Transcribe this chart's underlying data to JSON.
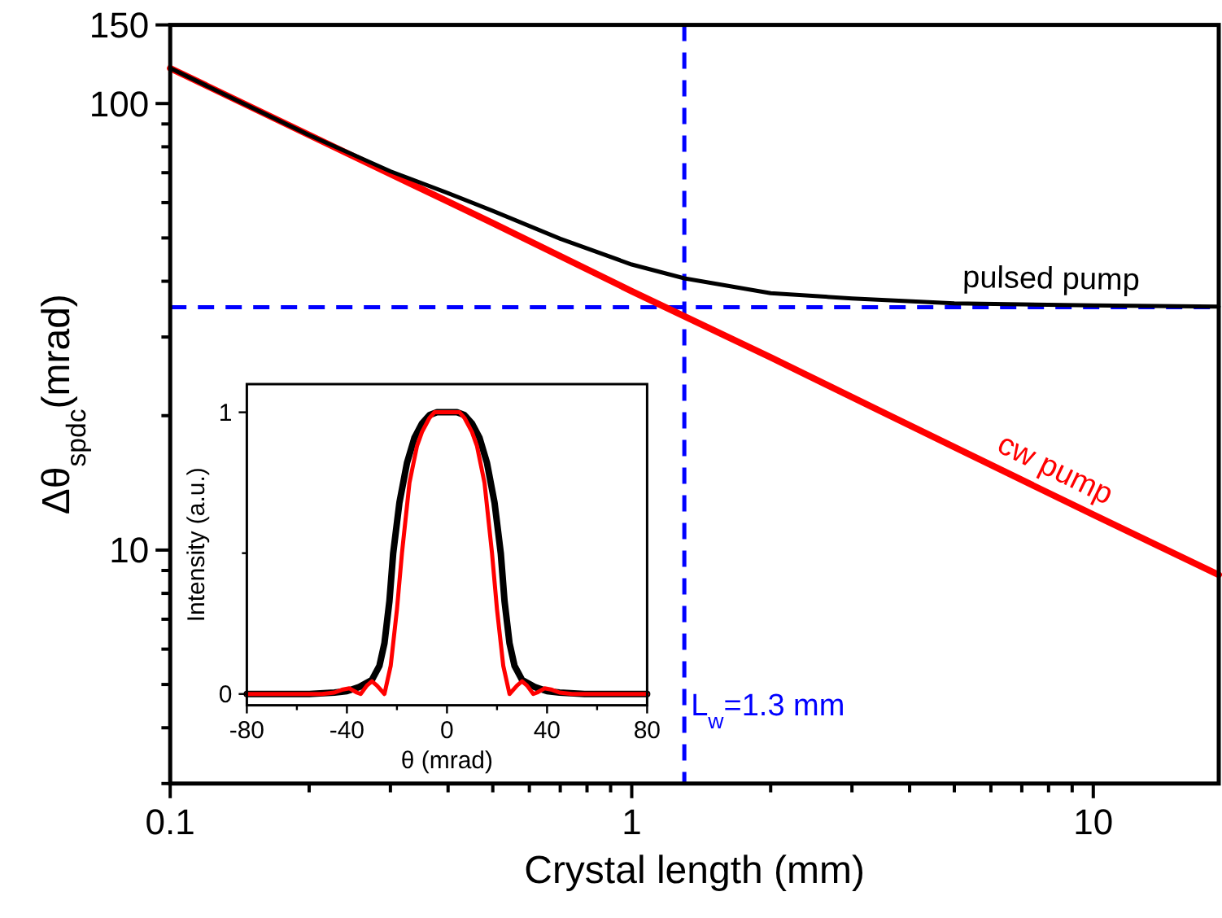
{
  "chart_data": [
    {
      "type": "line",
      "xlabel": "Crystal length (mm)",
      "ylabel": "Δθ$_{spdc}$(mrad)",
      "log": "xy",
      "xlim": [
        0.1,
        18.7
      ],
      "ylim": [
        3,
        150
      ],
      "xticks": [
        0.1,
        {
          "value": 0.2,
          "label": null
        },
        {
          "value": 0.3,
          "label": null
        },
        {
          "value": 0.4,
          "label": null
        },
        {
          "value": 0.5,
          "label": null
        },
        {
          "value": 0.6,
          "label": null
        },
        {
          "value": 0.7,
          "label": null
        },
        {
          "value": 0.8,
          "label": null
        },
        {
          "value": 0.9,
          "label": null
        },
        1,
        {
          "value": 2,
          "label": null
        },
        {
          "value": 3,
          "label": null
        },
        {
          "value": 4,
          "label": null
        },
        {
          "value": 5,
          "label": null
        },
        {
          "value": 6,
          "label": null
        },
        {
          "value": 7,
          "label": null
        },
        {
          "value": 8,
          "label": null
        },
        {
          "value": 9,
          "label": null
        },
        10
      ],
      "yticks": [
        {
          "value": 3,
          "label": null
        },
        {
          "value": 4,
          "label": null
        },
        {
          "value": 5,
          "label": null
        },
        {
          "value": 6,
          "label": null
        },
        {
          "value": 7,
          "label": null
        },
        {
          "value": 8,
          "label": null
        },
        {
          "value": 9,
          "label": null
        },
        10,
        {
          "value": 20,
          "label": null
        },
        {
          "value": 30,
          "label": null
        },
        {
          "value": 40,
          "label": null
        },
        {
          "value": 50,
          "label": null
        },
        {
          "value": 60,
          "label": null
        },
        {
          "value": 70,
          "label": null
        },
        {
          "value": 80,
          "label": null
        },
        {
          "value": 90,
          "label": null
        },
        100,
        150
      ],
      "series": [
        {
          "name": "cw pump",
          "color": "#ff0000",
          "x": [
            0.1,
            0.2,
            0.5,
            1,
            2,
            5,
            10,
            18.7
          ],
          "values": [
            120,
            85,
            54,
            38,
            27,
            17,
            12,
            8.8
          ]
        },
        {
          "name": "pulsed pump",
          "color": "#000000",
          "x": [
            0.1,
            0.15,
            0.2,
            0.3,
            0.4,
            0.5,
            0.7,
            1,
            1.3,
            2,
            3,
            5,
            10,
            18.7
          ],
          "values": [
            120,
            98,
            85,
            70.5,
            63,
            57.5,
            49.8,
            43.6,
            40.6,
            37.6,
            36.6,
            35.7,
            35.3,
            35.1
          ]
        }
      ],
      "ref_lines": [
        {
          "axis": "x",
          "value": 1.3,
          "label": "L$_{w}$=1.3 mm",
          "color": "#0000ff",
          "line_style": "dashed"
        },
        {
          "axis": "y",
          "value": 35,
          "color": "#0000ff",
          "line_style": "dashed"
        }
      ]
    },
    {
      "type": "line",
      "xlabel": "θ (mrad)",
      "ylabel": "Intensity (a.u.)",
      "xlim": [
        -80,
        80
      ],
      "ylim": [
        -0.04,
        1.1
      ],
      "xticks": [
        -80,
        {
          "value": -60,
          "label": null
        },
        -40,
        {
          "value": -20,
          "label": null
        },
        0,
        {
          "value": 20,
          "label": null
        },
        40,
        {
          "value": 60,
          "label": null
        },
        80
      ],
      "yticks": [
        0,
        {
          "value": 0.5,
          "label": null
        },
        1
      ],
      "series": [
        {
          "color": "#000000",
          "x": [
            -80,
            -55,
            -45,
            -40,
            -35,
            -30,
            -27,
            -25,
            -23,
            -21.5,
            -19,
            -16,
            -13,
            -10,
            -7,
            -4,
            0,
            4,
            7,
            10,
            13,
            16,
            19,
            21.5,
            23,
            25,
            27,
            30,
            35,
            40,
            45,
            55,
            80
          ],
          "values": [
            0,
            0,
            0.005,
            0.01,
            0.025,
            0.05,
            0.1,
            0.18,
            0.33,
            0.5,
            0.68,
            0.82,
            0.91,
            0.96,
            0.99,
            1,
            1,
            1,
            0.99,
            0.96,
            0.91,
            0.82,
            0.68,
            0.5,
            0.33,
            0.18,
            0.1,
            0.05,
            0.025,
            0.01,
            0.005,
            0,
            0
          ]
        },
        {
          "color": "#ff0000",
          "x": [
            -80,
            -50,
            -45,
            -42,
            -39,
            -36,
            -34.5,
            -32,
            -30,
            -28,
            -25,
            -22.5,
            -20,
            -18,
            -15,
            -12,
            -10,
            -7,
            -5,
            0,
            5,
            7,
            10,
            12,
            15,
            18,
            20,
            22.5,
            25,
            28,
            30,
            32,
            34.5,
            36,
            39,
            42,
            45,
            50,
            80
          ],
          "values": [
            0,
            0,
            0.005,
            0.015,
            0.02,
            0.005,
            0,
            0.03,
            0.045,
            0.03,
            0,
            0.1,
            0.3,
            0.5,
            0.75,
            0.88,
            0.93,
            0.98,
            1,
            1,
            1,
            0.98,
            0.93,
            0.88,
            0.75,
            0.5,
            0.3,
            0.1,
            0,
            0.03,
            0.045,
            0.03,
            0,
            0.005,
            0.02,
            0.015,
            0.005,
            0,
            0
          ]
        }
      ]
    }
  ]
}
